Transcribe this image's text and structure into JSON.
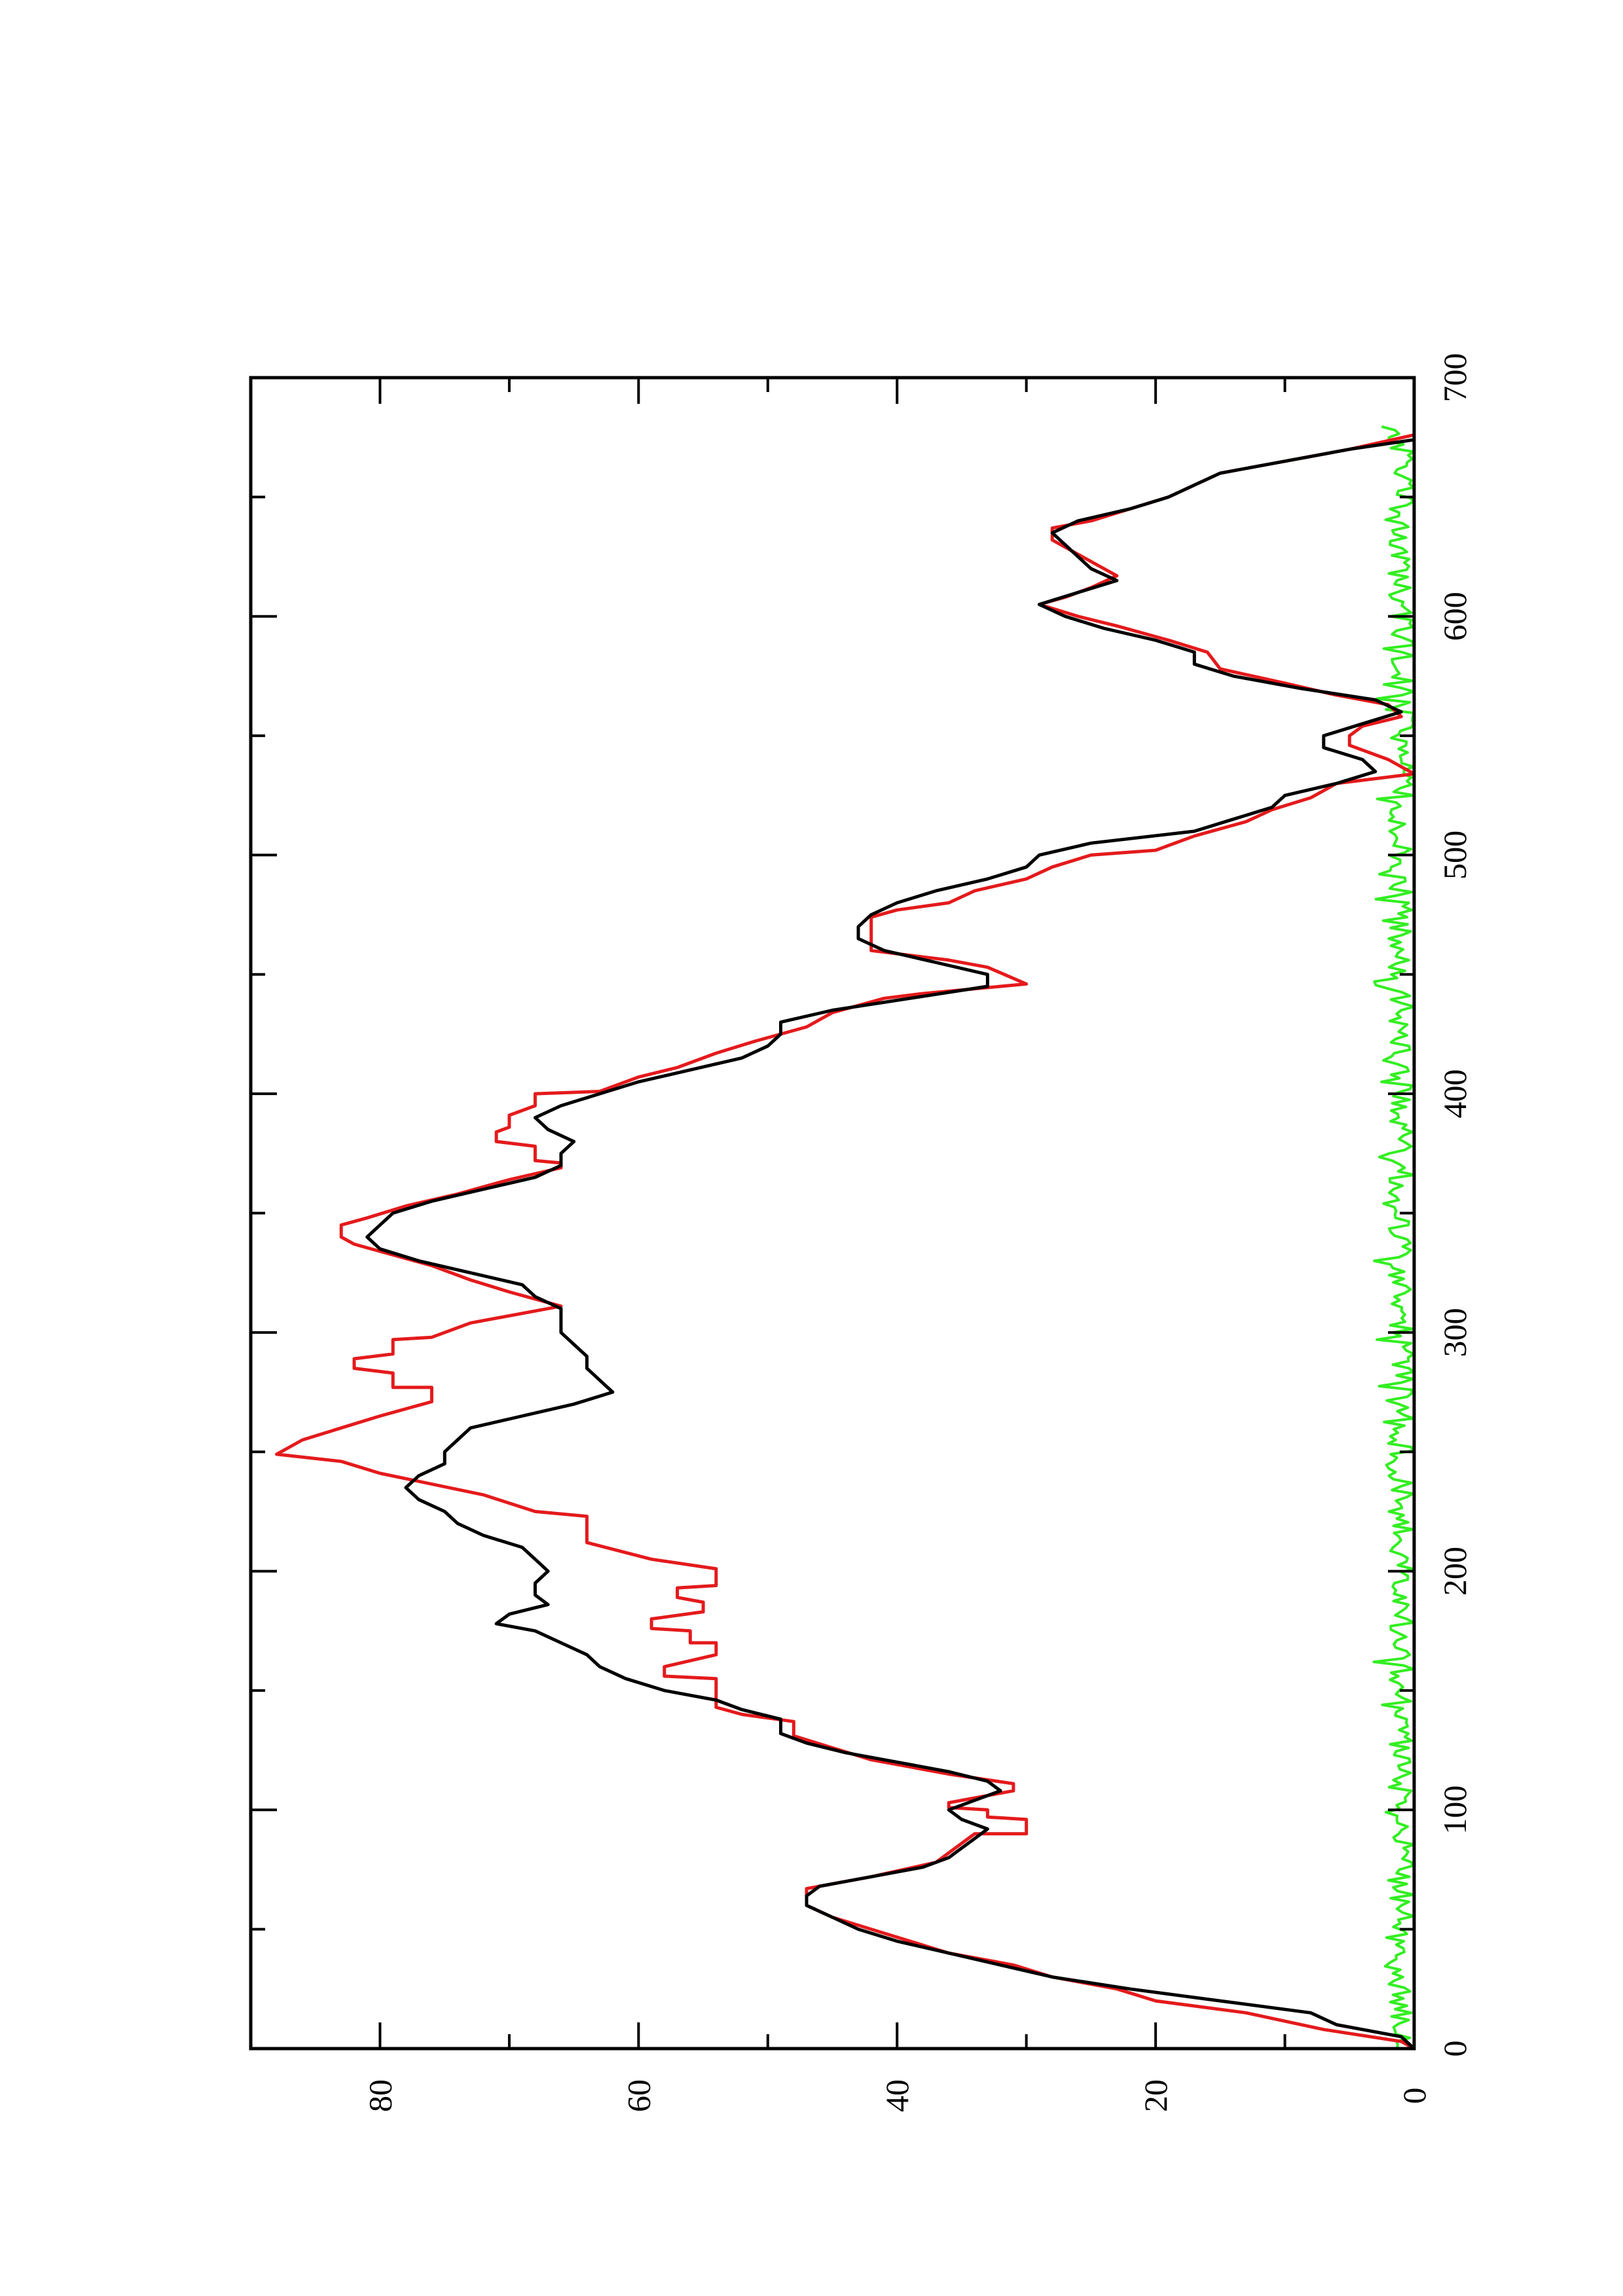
{
  "chart_data": {
    "type": "line",
    "orientation": "rotated-90-ccw",
    "title": "",
    "xlabel": "",
    "ylabel": "",
    "xlim": [
      0,
      700
    ],
    "ylim": [
      0,
      90
    ],
    "grid": false,
    "x_ticks": [
      {
        "value": 0,
        "label": "0"
      },
      {
        "value": 100,
        "label": "100"
      },
      {
        "value": 200,
        "label": "200"
      },
      {
        "value": 300,
        "label": "300"
      },
      {
        "value": 400,
        "label": "400"
      },
      {
        "value": 500,
        "label": "500"
      },
      {
        "value": 600,
        "label": "600"
      },
      {
        "value": 700,
        "label": "700"
      }
    ],
    "x_minor_ticks": [
      50,
      150,
      250,
      350,
      450,
      550,
      650
    ],
    "y_ticks": [
      {
        "value": 0,
        "label": "0"
      },
      {
        "value": 20,
        "label": "20"
      },
      {
        "value": 40,
        "label": "40"
      },
      {
        "value": 60,
        "label": "60"
      },
      {
        "value": 80,
        "label": "80"
      }
    ],
    "y_minor_ticks": [
      10,
      30,
      50,
      70
    ],
    "series": [
      {
        "color": "#000000",
        "points": [
          [
            0,
            0
          ],
          [
            5,
            1
          ],
          [
            10,
            6
          ],
          [
            15,
            8
          ],
          [
            20,
            15
          ],
          [
            25,
            22
          ],
          [
            30,
            28
          ],
          [
            35,
            32
          ],
          [
            40,
            36
          ],
          [
            45,
            40
          ],
          [
            50,
            43
          ],
          [
            55,
            45
          ],
          [
            60,
            47
          ],
          [
            64,
            47
          ],
          [
            68,
            46
          ],
          [
            72,
            42
          ],
          [
            76,
            38
          ],
          [
            80,
            36
          ],
          [
            84,
            35
          ],
          [
            88,
            34
          ],
          [
            92,
            33
          ],
          [
            96,
            35
          ],
          [
            100,
            36
          ],
          [
            104,
            34
          ],
          [
            108,
            32
          ],
          [
            112,
            33
          ],
          [
            116,
            36
          ],
          [
            120,
            40
          ],
          [
            124,
            44
          ],
          [
            128,
            47
          ],
          [
            132,
            49
          ],
          [
            138,
            49
          ],
          [
            142,
            52
          ],
          [
            146,
            54
          ],
          [
            150,
            58
          ],
          [
            155,
            61
          ],
          [
            160,
            63
          ],
          [
            165,
            64
          ],
          [
            170,
            66
          ],
          [
            175,
            68
          ],
          [
            178,
            71
          ],
          [
            182,
            70
          ],
          [
            186,
            67
          ],
          [
            190,
            68
          ],
          [
            195,
            68
          ],
          [
            200,
            67
          ],
          [
            205,
            68
          ],
          [
            210,
            69
          ],
          [
            215,
            72
          ],
          [
            220,
            74
          ],
          [
            225,
            75
          ],
          [
            230,
            77
          ],
          [
            235,
            78
          ],
          [
            240,
            77
          ],
          [
            245,
            75
          ],
          [
            250,
            75
          ],
          [
            255,
            74
          ],
          [
            260,
            73
          ],
          [
            265,
            69
          ],
          [
            270,
            65
          ],
          [
            275,
            62
          ],
          [
            280,
            63
          ],
          [
            285,
            64
          ],
          [
            290,
            64
          ],
          [
            295,
            65
          ],
          [
            300,
            66
          ],
          [
            305,
            66
          ],
          [
            310,
            66
          ],
          [
            315,
            68
          ],
          [
            320,
            69
          ],
          [
            325,
            73
          ],
          [
            330,
            77
          ],
          [
            335,
            80
          ],
          [
            340,
            81
          ],
          [
            345,
            80
          ],
          [
            350,
            79
          ],
          [
            355,
            76
          ],
          [
            360,
            72
          ],
          [
            365,
            68
          ],
          [
            370,
            66
          ],
          [
            375,
            66
          ],
          [
            380,
            65
          ],
          [
            385,
            67
          ],
          [
            390,
            68
          ],
          [
            395,
            66
          ],
          [
            400,
            63
          ],
          [
            405,
            60
          ],
          [
            410,
            56
          ],
          [
            415,
            52
          ],
          [
            420,
            50
          ],
          [
            425,
            49
          ],
          [
            430,
            49
          ],
          [
            435,
            45
          ],
          [
            440,
            39
          ],
          [
            445,
            33
          ],
          [
            450,
            33
          ],
          [
            455,
            37
          ],
          [
            460,
            41
          ],
          [
            465,
            43
          ],
          [
            470,
            43
          ],
          [
            475,
            42
          ],
          [
            480,
            40
          ],
          [
            485,
            37
          ],
          [
            490,
            33
          ],
          [
            495,
            30
          ],
          [
            500,
            29
          ],
          [
            505,
            25
          ],
          [
            510,
            17
          ],
          [
            515,
            14
          ],
          [
            520,
            11
          ],
          [
            525,
            10
          ],
          [
            530,
            6
          ],
          [
            535,
            3
          ],
          [
            540,
            4
          ],
          [
            545,
            7
          ],
          [
            550,
            7
          ],
          [
            555,
            4
          ],
          [
            560,
            1
          ],
          [
            565,
            3
          ],
          [
            570,
            9
          ],
          [
            575,
            14
          ],
          [
            580,
            17
          ],
          [
            585,
            17
          ],
          [
            590,
            20
          ],
          [
            595,
            24
          ],
          [
            600,
            27
          ],
          [
            605,
            29
          ],
          [
            610,
            26
          ],
          [
            615,
            23
          ],
          [
            620,
            25
          ],
          [
            625,
            26
          ],
          [
            630,
            27
          ],
          [
            635,
            28
          ],
          [
            640,
            26
          ],
          [
            645,
            22
          ],
          [
            650,
            19
          ],
          [
            655,
            17
          ],
          [
            660,
            15
          ],
          [
            665,
            10
          ],
          [
            670,
            5
          ],
          [
            674,
            0
          ]
        ]
      },
      {
        "color": "#e41a1c",
        "points": [
          [
            0,
            0
          ],
          [
            3,
            1
          ],
          [
            8,
            7
          ],
          [
            15,
            13
          ],
          [
            20,
            20
          ],
          [
            25,
            23
          ],
          [
            30,
            28
          ],
          [
            35,
            31
          ],
          [
            40,
            36
          ],
          [
            50,
            42
          ],
          [
            55,
            45
          ],
          [
            60,
            47
          ],
          [
            67,
            47
          ],
          [
            72,
            42
          ],
          [
            78,
            37
          ],
          [
            82,
            36
          ],
          [
            90,
            34
          ],
          [
            90,
            30
          ],
          [
            96,
            30
          ],
          [
            97,
            33
          ],
          [
            100,
            33
          ],
          [
            101,
            36
          ],
          [
            103,
            36
          ],
          [
            108,
            31
          ],
          [
            111,
            31
          ],
          [
            115,
            36
          ],
          [
            118,
            39
          ],
          [
            121,
            42
          ],
          [
            126,
            45
          ],
          [
            131,
            48
          ],
          [
            137,
            48
          ],
          [
            140,
            52
          ],
          [
            143,
            54
          ],
          [
            150,
            54
          ],
          [
            155,
            54
          ],
          [
            156,
            58
          ],
          [
            160,
            58
          ],
          [
            165,
            54
          ],
          [
            170,
            54
          ],
          [
            170,
            56
          ],
          [
            175,
            56
          ],
          [
            176,
            59
          ],
          [
            180,
            59
          ],
          [
            183,
            55
          ],
          [
            187,
            55
          ],
          [
            189,
            57
          ],
          [
            193,
            57
          ],
          [
            194,
            54
          ],
          [
            201,
            54
          ],
          [
            205,
            59
          ],
          [
            212,
            64
          ],
          [
            223,
            64
          ],
          [
            225,
            68
          ],
          [
            232,
            72
          ],
          [
            241,
            80
          ],
          [
            246,
            83
          ],
          [
            249,
            88
          ],
          [
            255,
            86
          ],
          [
            260,
            83
          ],
          [
            265,
            80
          ],
          [
            271,
            76
          ],
          [
            277,
            76
          ],
          [
            277,
            79
          ],
          [
            283,
            79
          ],
          [
            285,
            82
          ],
          [
            289,
            82
          ],
          [
            291,
            79
          ],
          [
            297,
            79
          ],
          [
            298,
            76
          ],
          [
            304,
            73
          ],
          [
            311,
            66
          ],
          [
            317,
            70
          ],
          [
            322,
            73
          ],
          [
            328,
            76
          ],
          [
            334,
            80
          ],
          [
            337,
            82
          ],
          [
            340,
            83
          ],
          [
            345,
            83
          ],
          [
            348,
            81
          ],
          [
            353,
            78
          ],
          [
            358,
            74
          ],
          [
            364,
            70
          ],
          [
            369,
            66
          ],
          [
            371,
            66
          ],
          [
            372,
            68
          ],
          [
            378,
            68
          ],
          [
            380,
            71
          ],
          [
            384,
            71
          ],
          [
            386,
            70
          ],
          [
            391,
            70
          ],
          [
            395,
            68
          ],
          [
            400,
            68
          ],
          [
            401,
            63
          ],
          [
            407,
            60
          ],
          [
            411,
            57
          ],
          [
            417,
            54
          ],
          [
            422,
            51
          ],
          [
            428,
            47
          ],
          [
            434,
            45
          ],
          [
            440,
            41
          ],
          [
            442,
            38
          ],
          [
            446,
            30
          ],
          [
            453,
            33
          ],
          [
            456,
            36
          ],
          [
            458,
            39
          ],
          [
            460,
            42
          ],
          [
            463,
            42
          ],
          [
            474,
            42
          ],
          [
            477,
            40
          ],
          [
            480,
            36
          ],
          [
            485,
            34
          ],
          [
            490,
            30
          ],
          [
            495,
            28
          ],
          [
            500,
            25
          ],
          [
            502,
            20
          ],
          [
            508,
            17
          ],
          [
            514,
            13
          ],
          [
            519,
            11
          ],
          [
            524,
            8
          ],
          [
            530,
            6
          ],
          [
            534,
            0
          ],
          [
            540,
            2
          ],
          [
            546,
            5
          ],
          [
            550,
            5
          ],
          [
            554,
            4
          ],
          [
            558,
            1
          ],
          [
            563,
            2
          ],
          [
            567,
            6
          ],
          [
            572,
            10
          ],
          [
            578,
            15
          ],
          [
            585,
            16
          ],
          [
            590,
            19
          ],
          [
            596,
            23
          ],
          [
            600,
            26
          ],
          [
            605,
            29
          ],
          [
            608,
            27
          ],
          [
            612,
            25
          ],
          [
            617,
            23
          ],
          [
            620,
            24
          ],
          [
            626,
            26
          ],
          [
            632,
            28
          ],
          [
            637,
            28
          ],
          [
            640,
            25
          ],
          [
            645,
            22
          ],
          [
            650,
            19
          ],
          [
            655,
            17
          ],
          [
            660,
            15
          ],
          [
            665,
            10
          ],
          [
            670,
            5
          ],
          [
            676,
            0
          ]
        ]
      },
      {
        "color": "#33ee22",
        "noise_amplitude": 2,
        "x_range": [
          0,
          680
        ]
      }
    ]
  }
}
